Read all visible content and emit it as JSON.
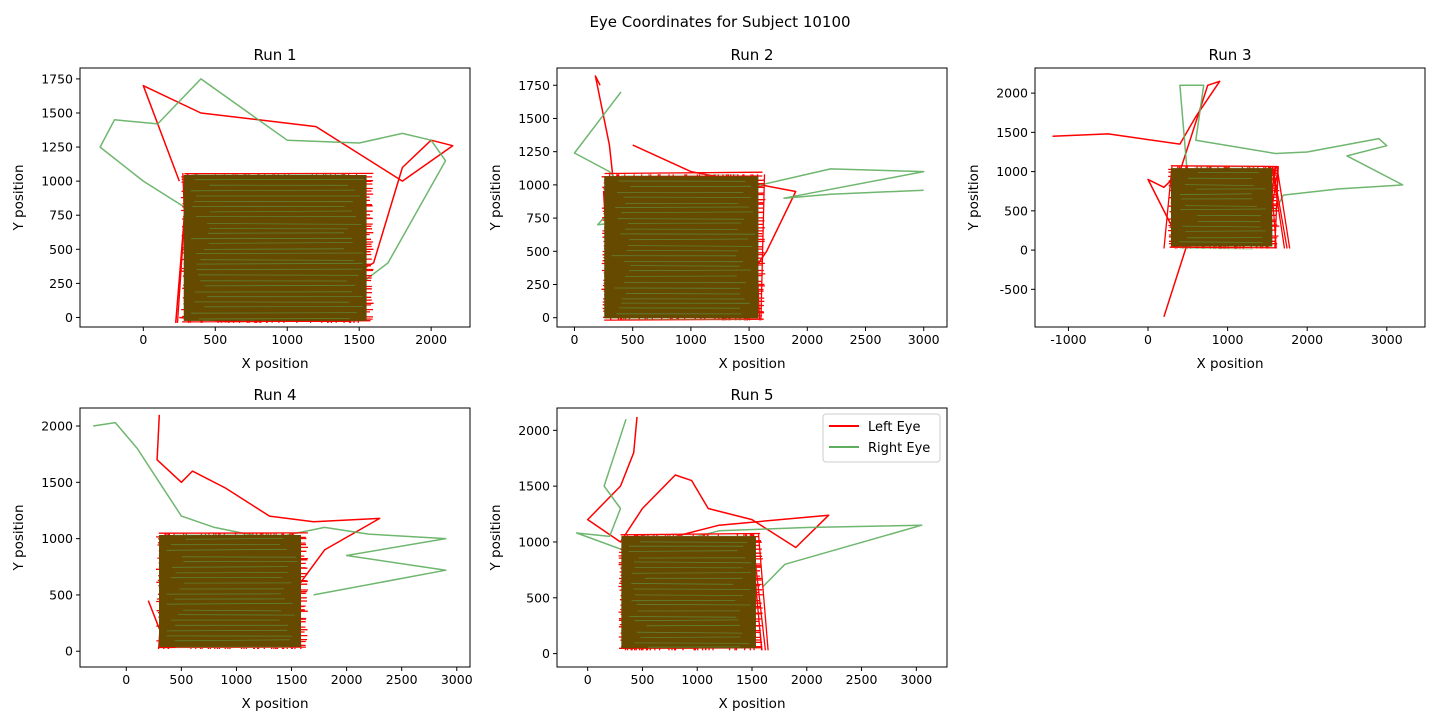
{
  "figure": {
    "title": "Eye Coordinates for Subject 10100"
  },
  "legend": {
    "entries": [
      {
        "label": "Left Eye",
        "color": "#ff0000"
      },
      {
        "label": "Right Eye",
        "color": "#5fae5f"
      }
    ],
    "location": "upper right of Run 5"
  },
  "colors": {
    "left_eye": "#ff0000",
    "right_eye": "#5fae5f",
    "overlap": "#654a00"
  },
  "chart_data": [
    {
      "type": "line",
      "title": "Run 1",
      "xlabel": "X position",
      "ylabel": "Y position",
      "xlim": [
        -440,
        2270
      ],
      "ylim": [
        -70,
        1830
      ],
      "xticks": [
        0,
        500,
        1000,
        1500,
        2000
      ],
      "yticks": [
        0,
        250,
        500,
        750,
        1000,
        1250,
        1500,
        1750
      ],
      "core_box": {
        "x": [
          260,
          1600
        ],
        "y": [
          -40,
          1060
        ]
      },
      "series": [
        {
          "name": "Left Eye",
          "x": [
            250,
            600,
            1000,
            1600,
            1800,
            2000,
            2150,
            1800,
            1500,
            1200,
            800,
            400,
            0,
            250
          ],
          "y": [
            0,
            -30,
            50,
            400,
            1100,
            1300,
            1260,
            1000,
            1200,
            1400,
            1450,
            1500,
            1700,
            1000
          ]
        },
        {
          "name": "Right Eye",
          "x": [
            300,
            0,
            -300,
            -200,
            100,
            400,
            1000,
            1500,
            1800,
            2000,
            2100,
            1700,
            1200,
            700
          ],
          "y": [
            800,
            1000,
            1250,
            1450,
            1420,
            1750,
            1300,
            1280,
            1350,
            1300,
            1150,
            400,
            0,
            -10
          ]
        }
      ]
    },
    {
      "type": "line",
      "title": "Run 2",
      "xlabel": "X position",
      "ylabel": "Y position",
      "xlim": [
        -150,
        3200
      ],
      "ylim": [
        -70,
        1880
      ],
      "xticks": [
        0,
        500,
        1000,
        1500,
        2000,
        2500,
        3000
      ],
      "yticks": [
        0,
        250,
        500,
        750,
        1000,
        1250,
        1500,
        1750
      ],
      "core_box": {
        "x": [
          230,
          1640
        ],
        "y": [
          -20,
          1080
        ]
      },
      "series": [
        {
          "name": "Left Eye",
          "x": [
            220,
            180,
            300,
            350,
            250,
            300,
            800,
            1300,
            1650,
            1900,
            1600,
            1000,
            500
          ],
          "y": [
            1750,
            1820,
            1300,
            900,
            950,
            200,
            0,
            50,
            500,
            950,
            1000,
            1100,
            1300
          ]
        },
        {
          "name": "Right Eye",
          "x": [
            400,
            0,
            300,
            450,
            200,
            1200,
            1600,
            2200,
            3000,
            1800,
            2200,
            3000
          ],
          "y": [
            1700,
            1240,
            1100,
            950,
            700,
            800,
            1000,
            1120,
            1100,
            900,
            930,
            960
          ]
        }
      ]
    },
    {
      "type": "line",
      "title": "Run 3",
      "xlabel": "X position",
      "ylabel": "Y position",
      "xlim": [
        -1420,
        3480
      ],
      "ylim": [
        -980,
        2320
      ],
      "xticks": [
        -1000,
        0,
        1000,
        2000,
        3000
      ],
      "yticks": [
        -500,
        0,
        500,
        1000,
        1500,
        2000
      ],
      "core_box": {
        "x": [
          250,
          1650
        ],
        "y": [
          20,
          1070
        ]
      },
      "series": [
        {
          "name": "Left Eye",
          "x": [
            -1200,
            -500,
            400,
            600,
            900,
            750,
            400,
            200,
            0,
            300,
            500,
            200
          ],
          "y": [
            1450,
            1480,
            1350,
            1700,
            2150,
            2100,
            1000,
            800,
            900,
            300,
            100,
            -850
          ]
        },
        {
          "name": "Right Eye",
          "x": [
            500,
            400,
            700,
            600,
            1600,
            2000,
            2900,
            3000,
            2500,
            3200,
            2400,
            1700,
            1600
          ],
          "y": [
            900,
            2100,
            2100,
            1400,
            1230,
            1250,
            1420,
            1330,
            1200,
            830,
            780,
            700,
            500
          ]
        }
      ]
    },
    {
      "type": "line",
      "title": "Run 4",
      "xlabel": "X position",
      "ylabel": "Y position",
      "xlim": [
        -420,
        3120
      ],
      "ylim": [
        -140,
        2160
      ],
      "xticks": [
        0,
        500,
        1000,
        1500,
        2000,
        2500,
        3000
      ],
      "yticks": [
        0,
        500,
        1000,
        1500,
        2000
      ],
      "core_box": {
        "x": [
          270,
          1650
        ],
        "y": [
          20,
          1050
        ]
      },
      "series": [
        {
          "name": "Left Eye",
          "x": [
            300,
            280,
            500,
            600,
            900,
            1300,
            1700,
            2300,
            1800,
            1500,
            900,
            300,
            200
          ],
          "y": [
            2100,
            1700,
            1500,
            1600,
            1450,
            1200,
            1150,
            1180,
            900,
            500,
            300,
            200,
            450
          ]
        },
        {
          "name": "Right Eye",
          "x": [
            -300,
            -100,
            100,
            300,
            500,
            800,
            1300,
            1800,
            2200,
            2900,
            2000,
            2900,
            1700
          ],
          "y": [
            2000,
            2030,
            1800,
            1500,
            1200,
            1100,
            1000,
            1100,
            1040,
            1000,
            850,
            720,
            500
          ]
        }
      ]
    },
    {
      "type": "line",
      "title": "Run 5",
      "xlabel": "X position",
      "ylabel": "Y position",
      "xlim": [
        -280,
        3280
      ],
      "ylim": [
        -120,
        2200
      ],
      "xticks": [
        0,
        500,
        1000,
        1500,
        2000,
        2500,
        3000
      ],
      "yticks": [
        0,
        500,
        1000,
        1500,
        2000
      ],
      "core_box": {
        "x": [
          280,
          1600
        ],
        "y": [
          30,
          1070
        ]
      },
      "series": [
        {
          "name": "Left Eye",
          "x": [
            450,
            420,
            300,
            0,
            300,
            500,
            800,
            950,
            1100,
            1500,
            1900,
            2200,
            1200,
            600
          ],
          "y": [
            2120,
            1800,
            1500,
            1200,
            1000,
            1300,
            1600,
            1550,
            1300,
            1200,
            950,
            1240,
            1150,
            1000
          ]
        },
        {
          "name": "Right Eye",
          "x": [
            350,
            250,
            150,
            300,
            200,
            -100,
            400,
            1200,
            2000,
            3050,
            1800,
            1600
          ],
          "y": [
            2100,
            1800,
            1500,
            1300,
            1050,
            1080,
            900,
            1100,
            1130,
            1150,
            800,
            600
          ]
        }
      ]
    }
  ]
}
